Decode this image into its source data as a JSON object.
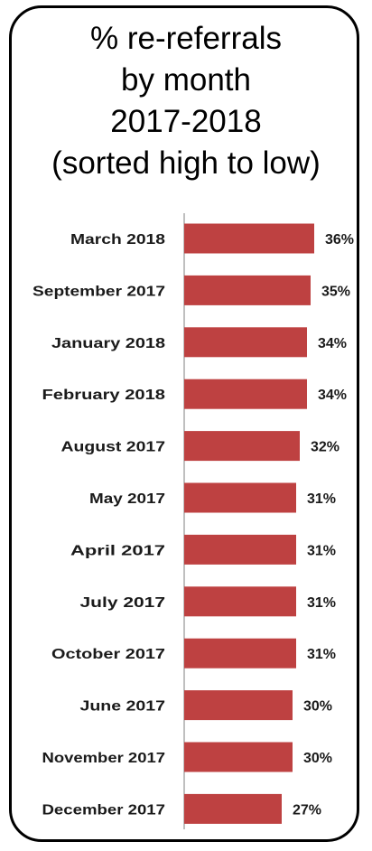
{
  "chart_data": {
    "type": "bar",
    "orientation": "horizontal",
    "title_lines": [
      "% re-referrals",
      "by month",
      "2017-2018",
      "(sorted high to low)"
    ],
    "categories": [
      "March 2018",
      "September 2017",
      "January 2018",
      "February 2018",
      "August 2017",
      "May 2017",
      "April 2017",
      "July 2017",
      "October 2017",
      "June 2017",
      "November 2017",
      "December 2017"
    ],
    "values": [
      36,
      35,
      34,
      34,
      32,
      31,
      31,
      31,
      31,
      30,
      30,
      27
    ],
    "value_labels": [
      "36%",
      "35%",
      "34%",
      "34%",
      "32%",
      "31%",
      "31%",
      "31%",
      "31%",
      "30%",
      "30%",
      "27%"
    ],
    "xlim": [
      0,
      40
    ],
    "grid": false,
    "legend": "none",
    "colors": {
      "bar": "#be4141",
      "axis": "#bfbfbf",
      "border": "#000000"
    }
  }
}
